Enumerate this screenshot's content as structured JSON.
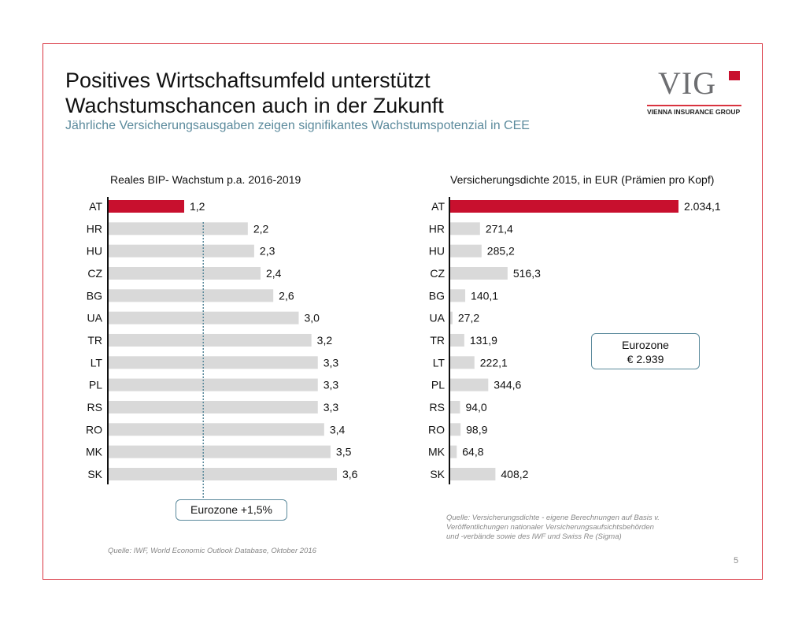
{
  "title_line1": "Positives Wirtschaftsumfeld unterstützt",
  "title_line2": "Wachstumschancen auch in der Zukunft",
  "subtitle": "Jährliche Versicherungsausgaben zeigen signifikantes Wachstumspotenzial in CEE",
  "logo": {
    "text": "VIG",
    "tagline": "VIENNA INSURANCE GROUP"
  },
  "colors": {
    "highlight": "#c8102e",
    "bar": "#d9d9d9",
    "accent": "#5b8a9c"
  },
  "chart_data": [
    {
      "type": "bar",
      "orientation": "horizontal",
      "title": "Reales BIP- Wachstum p.a. 2016-2019",
      "categories": [
        "AT",
        "HR",
        "HU",
        "CZ",
        "BG",
        "UA",
        "TR",
        "LT",
        "PL",
        "RS",
        "RO",
        "MK",
        "SK"
      ],
      "values": [
        1.2,
        2.2,
        2.3,
        2.4,
        2.6,
        3.0,
        3.2,
        3.3,
        3.3,
        3.3,
        3.4,
        3.5,
        3.6
      ],
      "labels": [
        "1,2",
        "2,2",
        "2,3",
        "2,4",
        "2,6",
        "3,0",
        "3,2",
        "3,3",
        "3,3",
        "3,3",
        "3,4",
        "3,5",
        "3,6"
      ],
      "highlight": "AT",
      "reference_line": {
        "value": 1.5,
        "label": "Eurozone +1,5%"
      }
    },
    {
      "type": "bar",
      "orientation": "horizontal",
      "title": "Versicherungsdichte 2015, in EUR (Prämien pro Kopf)",
      "categories": [
        "AT",
        "HR",
        "HU",
        "CZ",
        "BG",
        "UA",
        "TR",
        "LT",
        "PL",
        "RS",
        "RO",
        "MK",
        "SK"
      ],
      "values": [
        2034.1,
        271.4,
        285.2,
        516.3,
        140.1,
        27.2,
        131.9,
        222.1,
        344.6,
        94.0,
        98.9,
        64.8,
        408.2
      ],
      "labels": [
        "2.034,1",
        "271,4",
        "285,2",
        "516,3",
        "140,1",
        "27,2",
        "131,9",
        "222,1",
        "344,6",
        "94,0",
        "98,9",
        "64,8",
        "408,2"
      ],
      "highlight": "AT",
      "annotation": {
        "line1": "Eurozone",
        "line2": "€ 2.939"
      }
    }
  ],
  "source_left": "Quelle: IWF, World Economic Outlook Database, Oktober 2016",
  "source_right": [
    "Quelle: Versicherungsdichte - eigene Berechnungen auf Basis v.",
    "Veröffentlichungen nationaler Versicherungsaufsichtsbehörden",
    "und -verbände sowie des IWF und Swiss Re (Sigma)"
  ],
  "page_number": "5"
}
